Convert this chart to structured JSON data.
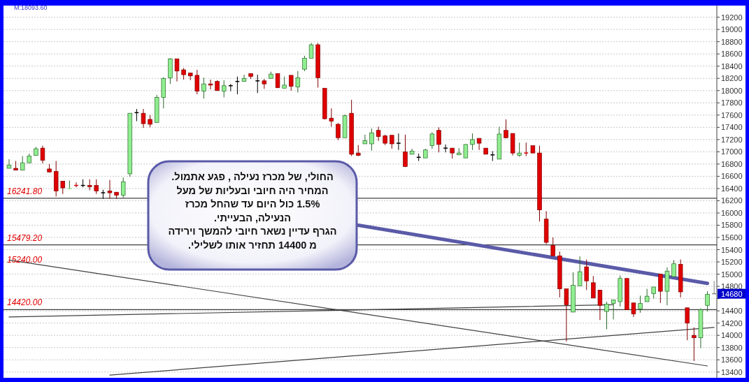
{
  "chart_data": {
    "type": "candlestick",
    "categories": [
      null,
      null,
      null,
      null,
      null,
      null,
      null,
      null,
      null,
      null,
      null,
      null,
      null,
      null,
      null,
      null,
      null,
      null,
      null,
      null,
      null,
      null,
      null,
      null,
      null,
      null,
      null,
      null,
      null,
      null,
      null,
      null,
      null,
      null,
      null,
      null,
      null,
      null,
      null,
      null,
      null,
      null,
      null,
      null,
      null,
      null,
      null,
      null,
      null,
      null,
      null,
      null,
      null,
      null,
      null,
      null,
      null,
      null,
      null,
      null,
      null,
      null,
      null,
      null,
      null,
      null,
      null,
      null,
      null,
      null,
      null,
      null,
      null,
      null,
      null,
      null,
      null,
      null,
      null,
      null,
      null,
      null,
      null,
      null,
      null,
      null,
      null,
      null,
      null,
      null,
      null,
      null,
      null,
      null,
      null,
      null,
      null,
      null,
      null,
      null,
      null,
      null,
      null,
      null,
      null,
      null
    ],
    "ohlc": [
      [
        16730,
        16880,
        16730,
        16780
      ],
      [
        16730,
        16850,
        16700,
        16700
      ],
      [
        16700,
        16930,
        16700,
        16820
      ],
      [
        16820,
        16970,
        16820,
        16930
      ],
      [
        16940,
        17080,
        16940,
        17050
      ],
      [
        17060,
        17100,
        16810,
        16860
      ],
      [
        16720,
        16800,
        16670,
        16670
      ],
      [
        16680,
        16850,
        16270,
        16360
      ],
      [
        16520,
        16520,
        16310,
        16410
      ],
      [
        16390,
        16530,
        16390,
        16400
      ],
      [
        16450,
        16500,
        16420,
        16440
      ],
      [
        16450,
        16550,
        16420,
        16450
      ],
      [
        16450,
        16550,
        16370,
        16430
      ],
      [
        16450,
        16550,
        16310,
        16360
      ],
      [
        16330,
        16380,
        16230,
        16330
      ],
      [
        16360,
        16540,
        16230,
        16330
      ],
      [
        16340,
        16340,
        16230,
        16290
      ],
      [
        16290,
        16580,
        16250,
        16510
      ],
      [
        16640,
        17630,
        16590,
        17630
      ],
      [
        17640,
        17700,
        17500,
        17640
      ],
      [
        17630,
        17700,
        17390,
        17460
      ],
      [
        17530,
        17600,
        17400,
        17450
      ],
      [
        17480,
        17930,
        17480,
        17890
      ],
      [
        17890,
        18220,
        17710,
        18200
      ],
      [
        18210,
        18530,
        18110,
        18520
      ],
      [
        18520,
        18520,
        18150,
        18320
      ],
      [
        18340,
        18370,
        18180,
        18260
      ],
      [
        18290,
        18290,
        18170,
        18240
      ],
      [
        18250,
        18340,
        17940,
        17990
      ],
      [
        17990,
        18210,
        17870,
        18110
      ],
      [
        18110,
        18180,
        18020,
        18090
      ],
      [
        18150,
        18170,
        18000,
        18000
      ],
      [
        17990,
        18170,
        17890,
        18080
      ],
      [
        18080,
        18110,
        17990,
        18080
      ],
      [
        18150,
        18230,
        17940,
        18150
      ],
      [
        18150,
        18260,
        18150,
        18200
      ],
      [
        18280,
        18280,
        18190,
        18230
      ],
      [
        18160,
        18260,
        17960,
        18160
      ],
      [
        18160,
        18190,
        18030,
        18110
      ],
      [
        18200,
        18310,
        18200,
        18270
      ],
      [
        18280,
        18280,
        18040,
        18050
      ],
      [
        18040,
        18230,
        18040,
        18090
      ],
      [
        18250,
        18250,
        18000,
        18070
      ],
      [
        18060,
        18320,
        17970,
        18210
      ],
      [
        18350,
        18570,
        18320,
        18530
      ],
      [
        18530,
        18780,
        18530,
        18750
      ],
      [
        18750,
        18780,
        18050,
        18210
      ],
      [
        18040,
        18040,
        17530,
        17540
      ],
      [
        17550,
        17710,
        17410,
        17500
      ],
      [
        17450,
        17470,
        17190,
        17230
      ],
      [
        17230,
        17610,
        17230,
        17590
      ],
      [
        17630,
        17850,
        16930,
        16960
      ],
      [
        16980,
        17110,
        16930,
        16940
      ],
      [
        17130,
        17280,
        17130,
        17180
      ],
      [
        17130,
        17380,
        17020,
        17310
      ],
      [
        17350,
        17410,
        17180,
        17250
      ],
      [
        17260,
        17280,
        17110,
        17140
      ],
      [
        17270,
        17270,
        17050,
        17130
      ],
      [
        17140,
        17300,
        17030,
        17140
      ],
      [
        17000,
        17280,
        16750,
        16760
      ],
      [
        16960,
        17050,
        16960,
        17010
      ],
      [
        16910,
        16970,
        16850,
        16910
      ],
      [
        16900,
        17050,
        16900,
        17030
      ],
      [
        17100,
        17320,
        17050,
        17290
      ],
      [
        17350,
        17400,
        16990,
        17120
      ],
      [
        17060,
        17120,
        16990,
        17060
      ],
      [
        17060,
        17060,
        16890,
        16980
      ],
      [
        16950,
        17060,
        16950,
        16980
      ],
      [
        16900,
        17120,
        16900,
        17120
      ],
      [
        17120,
        17300,
        17030,
        17200
      ],
      [
        17220,
        17220,
        17030,
        17140
      ],
      [
        17060,
        17060,
        16960,
        16960
      ],
      [
        16950,
        17010,
        16850,
        16950
      ],
      [
        16880,
        17410,
        16880,
        17290
      ],
      [
        17350,
        17530,
        17220,
        17230
      ],
      [
        17300,
        17300,
        16940,
        16980
      ],
      [
        16940,
        17150,
        16920,
        16980
      ],
      [
        16980,
        17150,
        16930,
        16970
      ],
      [
        17100,
        17100,
        16980,
        16980
      ],
      [
        16980,
        17100,
        15860,
        16050
      ],
      [
        15900,
        16030,
        15490,
        15520
      ],
      [
        15470,
        15600,
        15300,
        15300
      ],
      [
        15300,
        15370,
        14620,
        14760
      ],
      [
        14760,
        14760,
        13900,
        14500
      ],
      [
        14380,
        15030,
        14380,
        14820
      ],
      [
        14810,
        15290,
        14810,
        15040
      ],
      [
        15120,
        15240,
        14740,
        14890
      ],
      [
        14860,
        14970,
        14610,
        14610
      ],
      [
        14740,
        14740,
        14250,
        14490
      ],
      [
        14390,
        14550,
        14100,
        14510
      ],
      [
        14520,
        14580,
        14260,
        14580
      ],
      [
        14550,
        14980,
        14470,
        14930
      ],
      [
        14930,
        14930,
        14420,
        14420
      ],
      [
        14530,
        14530,
        14300,
        14350
      ],
      [
        14430,
        14650,
        14370,
        14520
      ],
      [
        14550,
        14760,
        14550,
        14640
      ],
      [
        14680,
        14790,
        14600,
        14790
      ],
      [
        15000,
        15000,
        14530,
        14720
      ],
      [
        14720,
        15110,
        14490,
        15050
      ],
      [
        14960,
        15230,
        14960,
        15170
      ],
      [
        15160,
        15240,
        14620,
        14710
      ],
      [
        14450,
        14450,
        13920,
        14200
      ],
      [
        14000,
        14130,
        13580,
        13960
      ],
      [
        13960,
        14440,
        13790,
        14420
      ],
      [
        14490,
        14720,
        14390,
        14670
      ],
      [
        14680,
        14890,
        14680,
        14680
      ]
    ],
    "colors": [
      "#90ee90",
      "#e00000",
      "#90ee90",
      "#90ee90",
      "#90ee90",
      "#e00000",
      "#e00000",
      "#e00000",
      "#e00000",
      "#90ee90",
      "#e00000",
      "#000000",
      "#e00000",
      "#e00000",
      "#000000",
      "#e00000",
      "#e00000",
      "#90ee90",
      "#90ee90",
      "#000000",
      "#e00000",
      "#e00000",
      "#90ee90",
      "#90ee90",
      "#90ee90",
      "#e00000",
      "#e00000",
      "#e00000",
      "#e00000",
      "#90ee90",
      "#e00000",
      "#e00000",
      "#90ee90",
      "#000000",
      "#000000",
      "#90ee90",
      "#e00000",
      "#000000",
      "#e00000",
      "#90ee90",
      "#e00000",
      "#90ee90",
      "#e00000",
      "#90ee90",
      "#90ee90",
      "#90ee90",
      "#e00000",
      "#e00000",
      "#e00000",
      "#e00000",
      "#90ee90",
      "#e00000",
      "#e00000",
      "#90ee90",
      "#90ee90",
      "#e00000",
      "#e00000",
      "#e00000",
      "#000000",
      "#e00000",
      "#90ee90",
      "#000000",
      "#90ee90",
      "#90ee90",
      "#e00000",
      "#000000",
      "#e00000",
      "#90ee90",
      "#90ee90",
      "#90ee90",
      "#e00000",
      "#e00000",
      "#000000",
      "#90ee90",
      "#e00000",
      "#e00000",
      "#90ee90",
      "#e00000",
      "#e00000",
      "#e00000",
      "#e00000",
      "#e00000",
      "#e00000",
      "#e00000",
      "#90ee90",
      "#90ee90",
      "#e00000",
      "#e00000",
      "#e00000",
      "#90ee90",
      "#90ee90",
      "#90ee90",
      "#e00000",
      "#e00000",
      "#90ee90",
      "#90ee90",
      "#90ee90",
      "#e00000",
      "#90ee90",
      "#90ee90",
      "#e00000",
      "#e00000",
      "#e00000",
      "#90ee90",
      "#90ee90",
      "#808080"
    ],
    "series": [
      {
        "type": "line",
        "name": "15240.00",
        "color": "#404040",
        "values": [
          15230,
          null,
          null,
          null,
          null,
          null,
          null,
          null,
          null,
          null,
          null,
          null,
          null,
          null,
          null,
          null,
          null,
          null,
          null,
          null,
          null,
          null,
          null,
          null,
          null,
          null,
          null,
          null,
          null,
          null,
          null,
          null,
          null,
          null,
          null,
          null,
          null,
          null,
          null,
          null,
          null,
          null,
          null,
          null,
          null,
          null,
          null,
          null,
          null,
          null,
          null,
          null,
          null,
          null,
          null,
          null,
          null,
          null,
          null,
          null,
          null,
          null,
          null,
          null,
          null,
          null,
          null,
          null,
          null,
          null,
          null,
          null,
          null,
          null,
          null,
          null,
          null,
          null,
          null,
          null,
          null,
          null,
          null,
          null,
          null,
          null,
          null,
          null,
          null,
          null,
          null,
          null,
          null,
          null,
          null,
          null,
          null,
          null,
          null,
          null,
          null,
          null,
          null,
          null,
          13500,
          null
        ]
      },
      {
        "type": "line",
        "color": "#404040",
        "values": [
          null,
          null,
          null,
          null,
          null,
          null,
          null,
          null,
          null,
          null,
          null,
          null,
          null,
          null,
          null,
          13350,
          null,
          null,
          null,
          null,
          null,
          null,
          null,
          null,
          null,
          null,
          null,
          null,
          null,
          null,
          null,
          null,
          null,
          null,
          null,
          null,
          null,
          null,
          null,
          null,
          null,
          null,
          null,
          null,
          null,
          null,
          null,
          null,
          null,
          null,
          null,
          null,
          null,
          null,
          null,
          null,
          null,
          null,
          null,
          null,
          null,
          null,
          null,
          null,
          null,
          null,
          null,
          null,
          null,
          null,
          null,
          null,
          null,
          null,
          null,
          null,
          null,
          null,
          null,
          null,
          null,
          null,
          null,
          null,
          null,
          null,
          null,
          null,
          null,
          null,
          null,
          null,
          null,
          null,
          null,
          null,
          null,
          null,
          null,
          null,
          null,
          null,
          null,
          null,
          null,
          14130
        ]
      },
      {
        "type": "line",
        "color": "#404040",
        "values": [
          14300,
          null,
          null,
          null,
          null,
          null,
          null,
          null,
          null,
          null,
          null,
          null,
          null,
          null,
          null,
          null,
          null,
          null,
          null,
          null,
          null,
          null,
          null,
          null,
          null,
          null,
          null,
          null,
          null,
          null,
          null,
          null,
          null,
          null,
          null,
          null,
          null,
          null,
          null,
          null,
          null,
          null,
          null,
          null,
          null,
          null,
          null,
          null,
          null,
          null,
          null,
          null,
          null,
          null,
          null,
          null,
          null,
          null,
          null,
          null,
          null,
          null,
          null,
          null,
          null,
          null,
          null,
          null,
          null,
          null,
          null,
          null,
          null,
          null,
          null,
          null,
          null,
          null,
          null,
          null,
          null,
          null,
          null,
          null,
          null,
          null,
          null,
          null,
          null,
          null,
          14500,
          null,
          null,
          null,
          null,
          null,
          null,
          null,
          null,
          null,
          null,
          null,
          null,
          null,
          null,
          null
        ]
      },
      {
        "type": "line",
        "color": "#5a5aa8",
        "values": [
          null,
          null,
          null,
          null,
          null,
          null,
          null,
          null,
          null,
          null,
          null,
          null,
          null,
          null,
          null,
          null,
          null,
          null,
          null,
          null,
          null,
          null,
          null,
          null,
          null,
          null,
          null,
          null,
          null,
          null,
          null,
          null,
          null,
          null,
          null,
          null,
          null,
          null,
          null,
          null,
          null,
          null,
          null,
          null,
          null,
          null,
          null,
          null,
          null,
          null,
          null,
          null,
          15800,
          null,
          null,
          null,
          null,
          null,
          null,
          null,
          null,
          null,
          null,
          null,
          null,
          null,
          null,
          null,
          null,
          null,
          null,
          null,
          null,
          null,
          null,
          null,
          null,
          null,
          null,
          null,
          null,
          null,
          null,
          null,
          null,
          null,
          null,
          null,
          null,
          null,
          null,
          null,
          null,
          null,
          null,
          null,
          null,
          null,
          null,
          null,
          null,
          null,
          null,
          null,
          14850,
          null
        ]
      }
    ],
    "ylim": [
      13340,
      19390
    ],
    "yticks": [
      13400,
      13600,
      13800,
      14000,
      14200,
      14400,
      {
        "value": 14600,
        "label": null
      },
      14800,
      15000,
      15200,
      15400,
      15600,
      15800,
      16000,
      16200,
      16400,
      16600,
      16800,
      17000,
      17200,
      17400,
      17600,
      17800,
      18000,
      18200,
      18400,
      18600,
      18800,
      19000,
      19200
    ],
    "grid": "y",
    "ref_lines": [
      {
        "axis": "y",
        "value": 16241.8,
        "label": "16241.80",
        "color": "#404040"
      },
      {
        "axis": "y",
        "value": 15479.2,
        "label": "15479.20",
        "color": "#404040"
      },
      {
        "axis": "y",
        "value": 14420,
        "label": "14420.00",
        "color": "#404040"
      }
    ],
    "annotations": [
      "M:18093.60",
      "החולי, של מכרז נעילה , פגע אתמול.\nהמחיר היה חיובי ובעליות של מעל\n1.5% כול היום עד שהחל מכרז\nהנעילה, הבעייתי.\nהגרף עדיין נשאר חיובי להמשך וירידה\nמ 14400 תחזיר אותו לשלילי.",
      {
        "text": "14680",
        "y": 14680
      }
    ]
  }
}
